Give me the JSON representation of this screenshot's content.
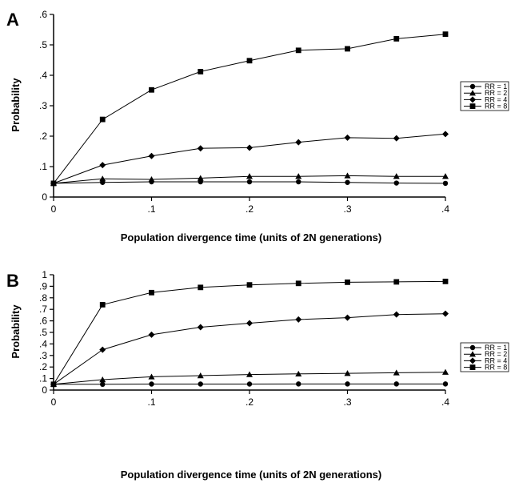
{
  "chart_data": [
    {
      "panel_label": "A",
      "type": "line",
      "xlabel": "Population divergence time (units of 2N generations)",
      "ylabel": "Probability",
      "x": [
        0,
        0.05,
        0.1,
        0.15,
        0.2,
        0.25,
        0.3,
        0.35,
        0.4
      ],
      "xlim": [
        0,
        0.4
      ],
      "ylim": [
        0,
        0.6
      ],
      "xticks": [
        0,
        0.1,
        0.2,
        0.3,
        0.4
      ],
      "xtick_labels": [
        "0",
        ".1",
        ".2",
        ".3",
        ".4"
      ],
      "yticks": [
        0,
        0.1,
        0.2,
        0.3,
        0.4,
        0.5,
        0.6
      ],
      "ytick_labels": [
        "0",
        ".1",
        ".2",
        ".3",
        ".4",
        ".5",
        ".6"
      ],
      "grid": false,
      "legend_position": "right",
      "series": [
        {
          "name": "RR = 1",
          "marker": "circle",
          "values": [
            0.045,
            0.048,
            0.05,
            0.05,
            0.05,
            0.05,
            0.048,
            0.046,
            0.045
          ]
        },
        {
          "name": "RR = 2",
          "marker": "triangle",
          "values": [
            0.045,
            0.06,
            0.058,
            0.062,
            0.068,
            0.068,
            0.07,
            0.068,
            0.068
          ]
        },
        {
          "name": "RR = 4",
          "marker": "diamond",
          "values": [
            0.045,
            0.105,
            0.135,
            0.16,
            0.162,
            0.18,
            0.195,
            0.193,
            0.207
          ]
        },
        {
          "name": "RR = 8",
          "marker": "square",
          "values": [
            0.045,
            0.255,
            0.352,
            0.412,
            0.448,
            0.482,
            0.487,
            0.52,
            0.535
          ]
        }
      ]
    },
    {
      "panel_label": "B",
      "type": "line",
      "xlabel": "Population divergence time (units of 2N generations)",
      "ylabel": "Probability",
      "x": [
        0,
        0.05,
        0.1,
        0.15,
        0.2,
        0.25,
        0.3,
        0.35,
        0.4
      ],
      "xlim": [
        0,
        0.4
      ],
      "ylim": [
        0,
        1
      ],
      "xticks": [
        0,
        0.1,
        0.2,
        0.3,
        0.4
      ],
      "xtick_labels": [
        "0",
        ".1",
        ".2",
        ".3",
        ".4"
      ],
      "yticks": [
        0,
        0.1,
        0.2,
        0.3,
        0.4,
        0.5,
        0.6,
        0.7,
        0.8,
        0.9,
        1
      ],
      "ytick_labels": [
        "0",
        ".1",
        ".2",
        ".3",
        ".4",
        ".5",
        ".6",
        ".7",
        ".8",
        ".9",
        "1"
      ],
      "grid": false,
      "legend_position": "right",
      "series": [
        {
          "name": "RR = 1",
          "marker": "circle",
          "values": [
            0.05,
            0.05,
            0.052,
            0.052,
            0.052,
            0.053,
            0.053,
            0.053,
            0.053
          ]
        },
        {
          "name": "RR = 2",
          "marker": "triangle",
          "values": [
            0.05,
            0.09,
            0.115,
            0.125,
            0.135,
            0.14,
            0.145,
            0.15,
            0.155
          ]
        },
        {
          "name": "RR = 4",
          "marker": "diamond",
          "values": [
            0.05,
            0.35,
            0.48,
            0.545,
            0.58,
            0.612,
            0.628,
            0.655,
            0.662
          ]
        },
        {
          "name": "RR = 8",
          "marker": "square",
          "values": [
            0.05,
            0.74,
            0.845,
            0.89,
            0.912,
            0.925,
            0.935,
            0.938,
            0.942
          ]
        }
      ]
    }
  ]
}
